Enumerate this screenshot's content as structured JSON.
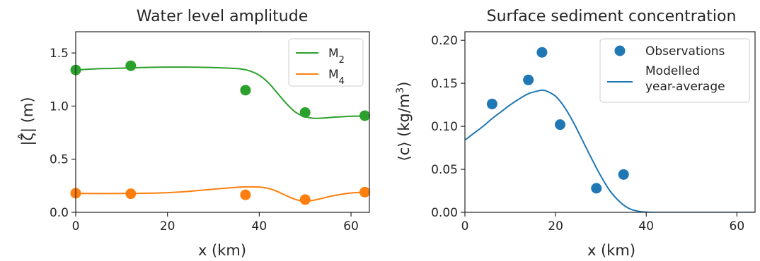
{
  "chart_data": [
    {
      "type": "line",
      "title": "Water level amplitude",
      "xlabel": "x (km)",
      "ylabel": "|ζ̂| (m)",
      "xlim": [
        0,
        64
      ],
      "ylim": [
        0,
        1.7
      ],
      "xticks": [
        0,
        20,
        40,
        60
      ],
      "xtick_labels": [
        "0",
        "20",
        "40",
        "60"
      ],
      "yticks": [
        0.0,
        0.5,
        1.0,
        1.5
      ],
      "ytick_labels": [
        "0.0",
        "0.5",
        "1.0",
        "1.5"
      ],
      "legend_position": "top-right",
      "series": [
        {
          "name": "M2",
          "name_base": "M",
          "name_sub": "2",
          "color": "#2ca02c",
          "line": {
            "x": [
              0,
              4,
              8,
              12,
              16,
              20,
              24,
              28,
              32,
              36,
              38,
              40,
              42,
              44,
              46,
              48,
              50,
              52,
              54,
              56,
              58,
              60,
              63
            ],
            "y": [
              1.34,
              1.35,
              1.355,
              1.36,
              1.365,
              1.367,
              1.367,
              1.365,
              1.36,
              1.35,
              1.33,
              1.29,
              1.22,
              1.12,
              1.02,
              0.94,
              0.9,
              0.885,
              0.888,
              0.895,
              0.9,
              0.905,
              0.905
            ]
          },
          "points": {
            "x": [
              0,
              12,
              37,
              50,
              63
            ],
            "y": [
              1.34,
              1.38,
              1.15,
              0.94,
              0.91
            ]
          }
        },
        {
          "name": "M4",
          "name_base": "M",
          "name_sub": "4",
          "color": "#ff7f0e",
          "line": {
            "x": [
              0,
              4,
              8,
              12,
              16,
              20,
              24,
              28,
              32,
              36,
              38,
              40,
              42,
              44,
              46,
              48,
              50,
              52,
              54,
              56,
              58,
              60,
              63
            ],
            "y": [
              0.178,
              0.177,
              0.177,
              0.178,
              0.18,
              0.185,
              0.195,
              0.21,
              0.225,
              0.238,
              0.24,
              0.238,
              0.225,
              0.195,
              0.155,
              0.12,
              0.105,
              0.115,
              0.135,
              0.155,
              0.17,
              0.182,
              0.19
            ]
          },
          "points": {
            "x": [
              0,
              12,
              37,
              50,
              63
            ],
            "y": [
              0.18,
              0.175,
              0.165,
              0.12,
              0.19
            ]
          }
        }
      ]
    },
    {
      "type": "scatter+line",
      "title": "Surface sediment concentration",
      "xlabel": "x (km)",
      "ylabel": "⟨c⟩ (kg/m³)",
      "ylabel_base": "⟨c⟩ (kg/m",
      "ylabel_sup": "3",
      "ylabel_end": ")",
      "xlim": [
        0,
        64
      ],
      "ylim": [
        0,
        0.21
      ],
      "xticks": [
        0,
        20,
        40,
        60
      ],
      "xtick_labels": [
        "0",
        "20",
        "40",
        "60"
      ],
      "yticks": [
        0.0,
        0.05,
        0.1,
        0.15,
        0.2
      ],
      "ytick_labels": [
        "0.00",
        "0.05",
        "0.10",
        "0.15",
        "0.20"
      ],
      "legend_position": "top-right",
      "series": [
        {
          "name": "Observations",
          "color": "#1f77b4",
          "points": {
            "x": [
              6,
              14,
              17,
              21,
              29,
              35
            ],
            "y": [
              0.126,
              0.154,
              0.186,
              0.102,
              0.028,
              0.044
            ]
          }
        },
        {
          "name": "Modelled year-average",
          "name_lines": [
            "Modelled",
            "year-average"
          ],
          "color": "#1f77b4",
          "line": {
            "x": [
              0,
              2,
              4,
              6,
              8,
              10,
              12,
              14,
              16,
              17,
              18,
              20,
              22,
              24,
              26,
              28,
              30,
              32,
              34,
              36,
              38,
              40,
              42,
              46,
              52,
              64
            ],
            "y": [
              0.084,
              0.092,
              0.1,
              0.109,
              0.117,
              0.125,
              0.132,
              0.138,
              0.141,
              0.142,
              0.141,
              0.135,
              0.122,
              0.104,
              0.083,
              0.062,
              0.042,
              0.025,
              0.013,
              0.005,
              0.0015,
              0.0003,
              0.0,
              0.0,
              0.0,
              0.0
            ]
          }
        }
      ]
    }
  ]
}
